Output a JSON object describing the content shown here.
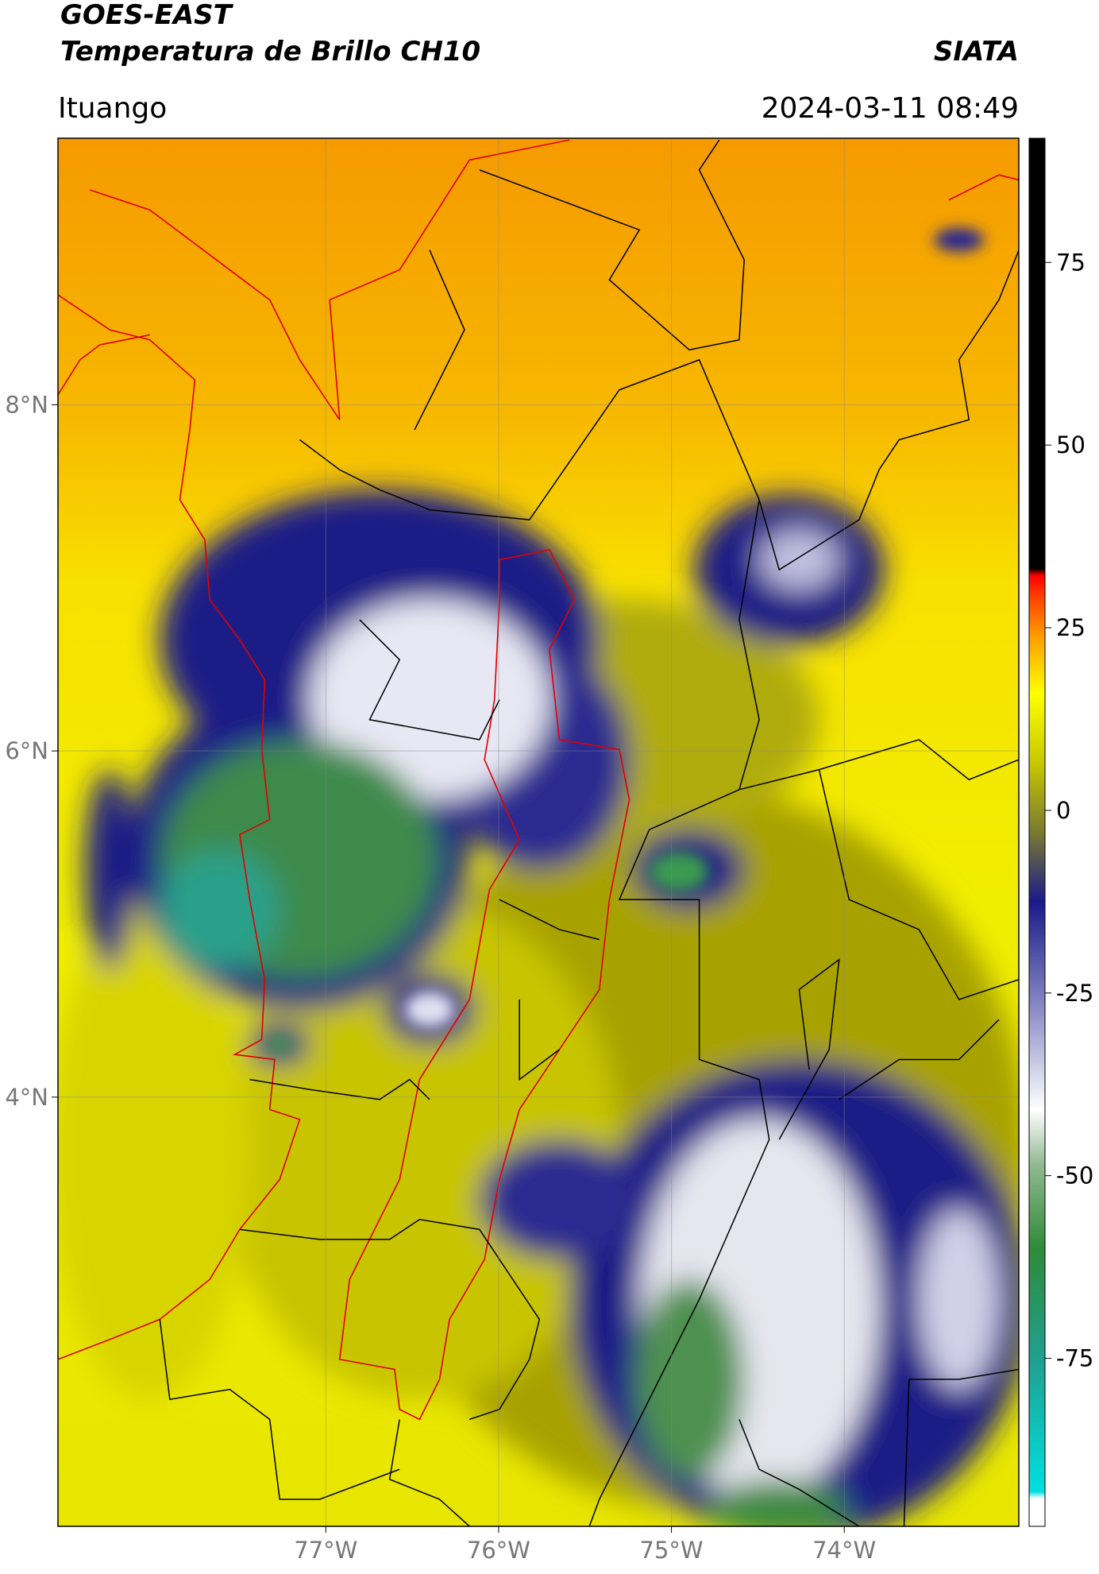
{
  "header": {
    "title": "GOES-EAST",
    "subtitle": "Temperatura de Brillo CH10",
    "source": "SIATA",
    "location": "Ituango",
    "timestamp": "2024-03-11 08:49"
  },
  "map": {
    "xlim": [
      -78.55,
      -72.99
    ],
    "ylim": [
      1.52,
      9.54
    ],
    "xticks": [
      {
        "value": -77,
        "label": "77°W"
      },
      {
        "value": -76,
        "label": "76°W"
      },
      {
        "value": -75,
        "label": "75°W"
      },
      {
        "value": -74,
        "label": "74°W"
      }
    ],
    "yticks": [
      {
        "value": 8,
        "label": "8°N"
      },
      {
        "value": 6,
        "label": "6°N"
      },
      {
        "value": 4,
        "label": "4°N"
      }
    ],
    "grid": true
  },
  "colorbar": {
    "lim": [
      -98,
      92
    ],
    "ticks": [
      75,
      50,
      25,
      0,
      -25,
      -50,
      -75
    ]
  }
}
